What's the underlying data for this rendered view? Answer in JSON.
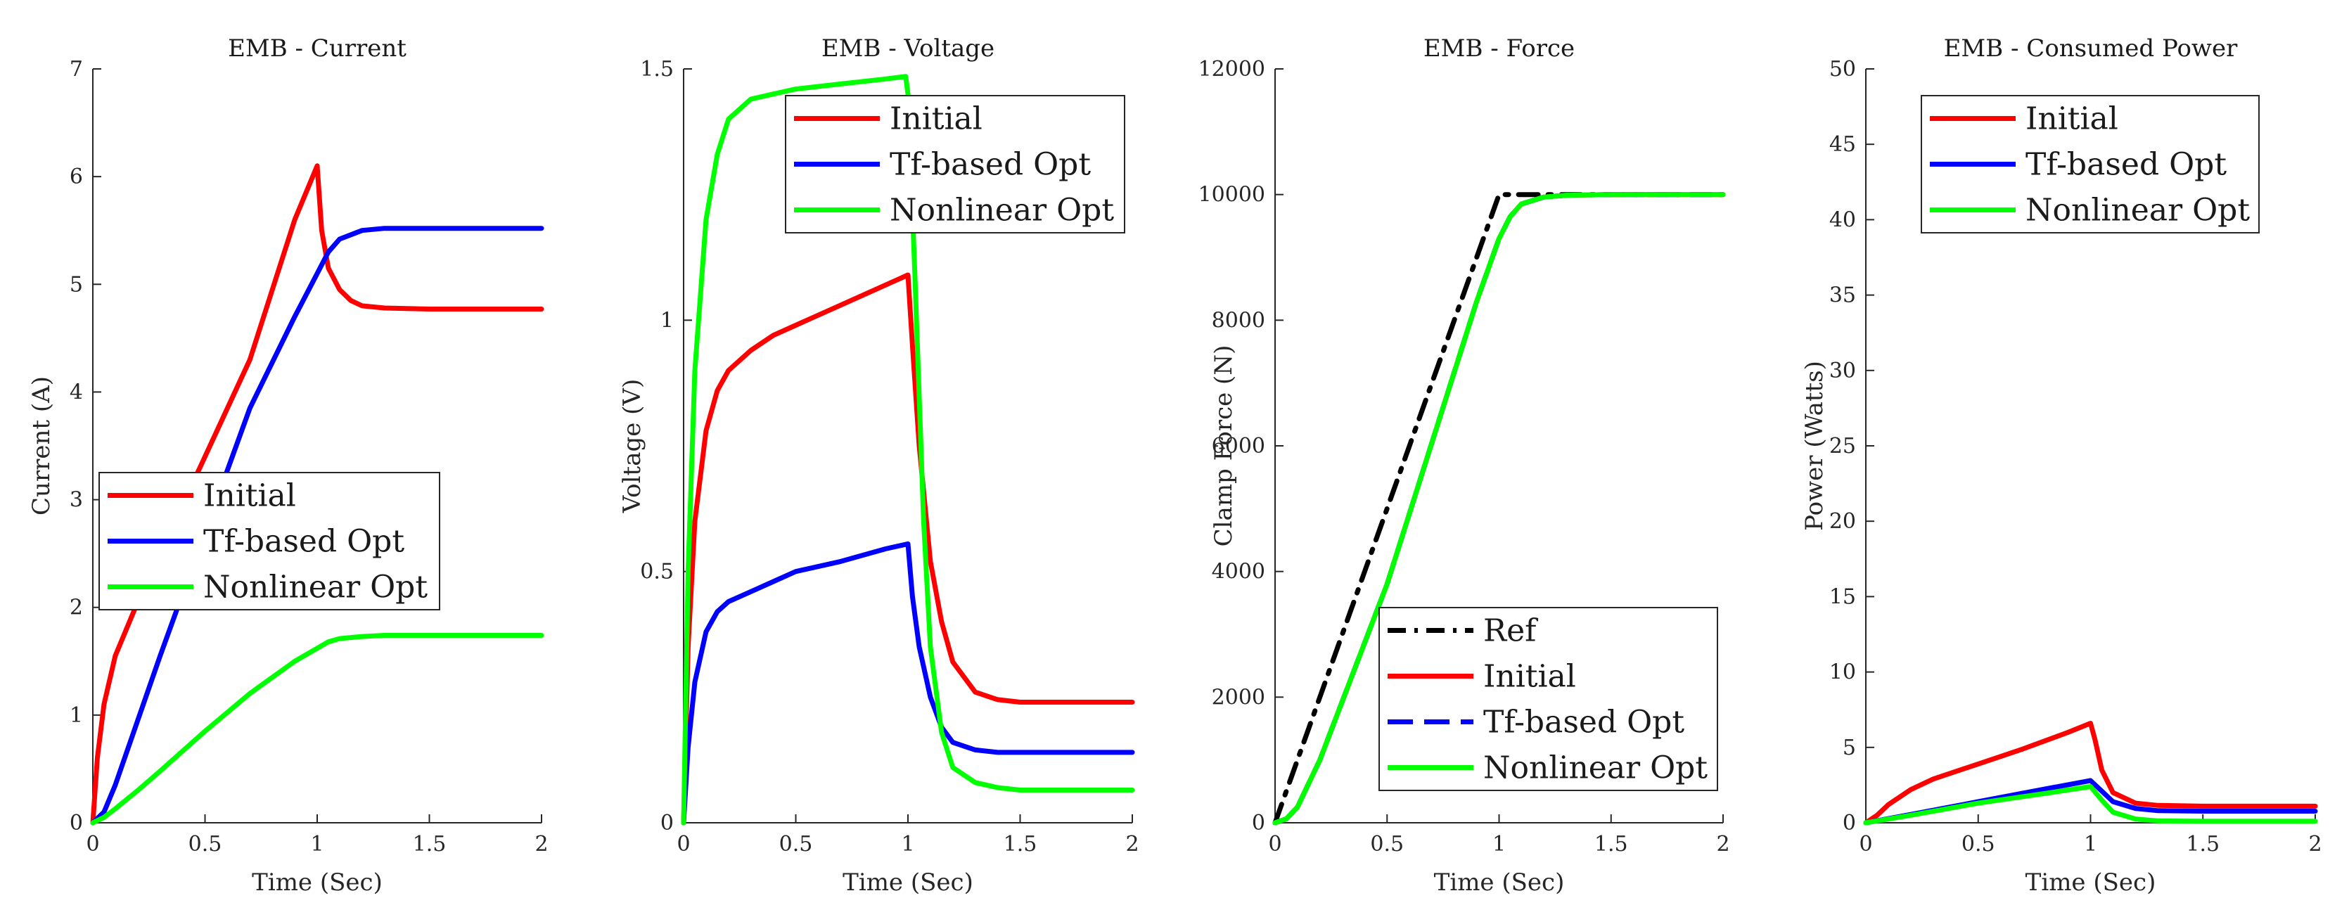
{
  "colors": {
    "initial": "#ff0000",
    "tf": "#0000ff",
    "nonlinear": "#00ff00",
    "ref": "#000000"
  },
  "chart_data": [
    {
      "type": "line",
      "title": "EMB - Current",
      "xlabel": "Time (Sec)",
      "ylabel": "Current (A)",
      "xlim": [
        0,
        2
      ],
      "ylim": [
        0,
        7
      ],
      "xticks": [
        0,
        0.5,
        1,
        1.5,
        2
      ],
      "xtick_labels": [
        "0",
        "0.5",
        "1",
        "1.5",
        "2"
      ],
      "yticks": [
        0,
        1,
        2,
        3,
        4,
        5,
        6,
        7
      ],
      "ytick_labels": [
        "0",
        "1",
        "2",
        "3",
        "4",
        "5",
        "6",
        "7"
      ],
      "legend_position": "center-left",
      "series": [
        {
          "name": "Initial",
          "color": "#ff0000",
          "dash": "solid",
          "x": [
            0,
            0.02,
            0.05,
            0.1,
            0.2,
            0.3,
            0.5,
            0.7,
            0.9,
            1.0,
            1.02,
            1.05,
            1.1,
            1.15,
            1.2,
            1.3,
            1.5,
            2.0
          ],
          "y": [
            0,
            0.6,
            1.1,
            1.55,
            2.05,
            2.5,
            3.4,
            4.3,
            5.6,
            6.1,
            5.5,
            5.15,
            4.95,
            4.85,
            4.8,
            4.78,
            4.77,
            4.77
          ]
        },
        {
          "name": "Tf-based Opt",
          "color": "#0000ff",
          "dash": "solid",
          "x": [
            0,
            0.05,
            0.1,
            0.2,
            0.3,
            0.5,
            0.7,
            0.9,
            1.0,
            1.05,
            1.1,
            1.2,
            1.3,
            1.5,
            2.0
          ],
          "y": [
            0,
            0.1,
            0.35,
            0.95,
            1.55,
            2.7,
            3.85,
            4.7,
            5.1,
            5.3,
            5.42,
            5.5,
            5.52,
            5.52,
            5.52
          ]
        },
        {
          "name": "Nonlinear Opt",
          "color": "#00ff00",
          "dash": "solid",
          "x": [
            0,
            0.05,
            0.1,
            0.2,
            0.3,
            0.5,
            0.7,
            0.9,
            1.0,
            1.05,
            1.1,
            1.2,
            1.3,
            1.5,
            2.0
          ],
          "y": [
            0,
            0.05,
            0.13,
            0.3,
            0.48,
            0.85,
            1.2,
            1.5,
            1.62,
            1.68,
            1.71,
            1.73,
            1.74,
            1.74,
            1.74
          ]
        }
      ]
    },
    {
      "type": "line",
      "title": "EMB - Voltage",
      "xlabel": "Time (Sec)",
      "ylabel": "Voltage (V)",
      "xlim": [
        0,
        2
      ],
      "ylim": [
        0,
        1.5
      ],
      "xticks": [
        0,
        0.5,
        1,
        1.5,
        2
      ],
      "xtick_labels": [
        "0",
        "0.5",
        "1",
        "1.5",
        "2"
      ],
      "yticks": [
        0,
        0.5,
        1,
        1.5
      ],
      "ytick_labels": [
        "0",
        "0.5",
        "1",
        "1.5"
      ],
      "legend_position": "top-right",
      "series": [
        {
          "name": "Initial",
          "color": "#ff0000",
          "dash": "solid",
          "x": [
            0,
            0.02,
            0.05,
            0.1,
            0.15,
            0.2,
            0.3,
            0.4,
            0.5,
            0.7,
            0.9,
            1.0,
            1.02,
            1.05,
            1.1,
            1.15,
            1.2,
            1.3,
            1.4,
            1.5,
            2.0
          ],
          "y": [
            0,
            0.35,
            0.6,
            0.78,
            0.86,
            0.9,
            0.94,
            0.97,
            0.99,
            1.03,
            1.07,
            1.09,
            0.95,
            0.75,
            0.52,
            0.4,
            0.32,
            0.26,
            0.245,
            0.24,
            0.24
          ]
        },
        {
          "name": "Tf-based Opt",
          "color": "#0000ff",
          "dash": "solid",
          "x": [
            0,
            0.02,
            0.05,
            0.1,
            0.15,
            0.2,
            0.3,
            0.4,
            0.5,
            0.7,
            0.9,
            1.0,
            1.02,
            1.05,
            1.1,
            1.15,
            1.2,
            1.3,
            1.4,
            1.5,
            2.0
          ],
          "y": [
            0,
            0.15,
            0.28,
            0.38,
            0.42,
            0.44,
            0.46,
            0.48,
            0.5,
            0.52,
            0.545,
            0.555,
            0.45,
            0.35,
            0.25,
            0.19,
            0.16,
            0.145,
            0.14,
            0.14,
            0.14
          ]
        },
        {
          "name": "Nonlinear Opt",
          "color": "#00ff00",
          "dash": "solid",
          "x": [
            0,
            0.02,
            0.05,
            0.1,
            0.15,
            0.2,
            0.3,
            0.4,
            0.5,
            0.7,
            0.9,
            0.99,
            1.0,
            1.03,
            1.07,
            1.1,
            1.15,
            1.2,
            1.3,
            1.4,
            1.5,
            2.0
          ],
          "y": [
            0,
            0.5,
            0.9,
            1.2,
            1.33,
            1.4,
            1.44,
            1.45,
            1.46,
            1.47,
            1.48,
            1.485,
            1.45,
            1.1,
            0.6,
            0.35,
            0.18,
            0.11,
            0.08,
            0.07,
            0.065,
            0.065
          ]
        }
      ]
    },
    {
      "type": "line",
      "title": "EMB - Force",
      "xlabel": "Time (Sec)",
      "ylabel": "Clamp Force (N)",
      "xlim": [
        0,
        2
      ],
      "ylim": [
        0,
        12000
      ],
      "xticks": [
        0,
        0.5,
        1,
        1.5,
        2
      ],
      "xtick_labels": [
        "0",
        "0.5",
        "1",
        "1.5",
        "2"
      ],
      "yticks": [
        0,
        2000,
        4000,
        6000,
        8000,
        10000,
        12000
      ],
      "ytick_labels": [
        "0",
        "2000",
        "4000",
        "6000",
        "8000",
        "10000",
        "12000"
      ],
      "legend_position": "bottom-right",
      "series": [
        {
          "name": "Ref",
          "color": "#000000",
          "dash": "dashdot",
          "x": [
            0,
            1.0,
            2.0
          ],
          "y": [
            0,
            10000,
            10000
          ]
        },
        {
          "name": "Initial",
          "color": "#ff0000",
          "dash": "solid",
          "x": [
            0,
            0.05,
            0.1,
            0.2,
            0.5,
            0.9,
            1.0,
            1.05,
            1.1,
            1.2,
            1.3,
            1.5,
            2.0
          ],
          "y": [
            0,
            60,
            250,
            1000,
            3800,
            8300,
            9300,
            9650,
            9850,
            9960,
            9990,
            10000,
            10000
          ]
        },
        {
          "name": "Tf-based Opt",
          "color": "#0000ff",
          "dash": "dashed",
          "x": [
            0,
            0.05,
            0.1,
            0.2,
            0.5,
            0.9,
            1.0,
            1.05,
            1.1,
            1.2,
            1.3,
            1.5,
            2.0
          ],
          "y": [
            0,
            60,
            250,
            1000,
            3800,
            8300,
            9300,
            9650,
            9850,
            9960,
            9990,
            10000,
            10000
          ]
        },
        {
          "name": "Nonlinear Opt",
          "color": "#00ff00",
          "dash": "solid",
          "x": [
            0,
            0.05,
            0.1,
            0.2,
            0.5,
            0.9,
            1.0,
            1.05,
            1.1,
            1.2,
            1.3,
            1.5,
            2.0
          ],
          "y": [
            0,
            60,
            250,
            1000,
            3800,
            8300,
            9300,
            9650,
            9850,
            9960,
            9990,
            10000,
            10000
          ]
        }
      ]
    },
    {
      "type": "line",
      "title": "EMB - Consumed Power",
      "xlabel": "Time (Sec)",
      "ylabel": "Power (Watts)",
      "xlim": [
        0,
        2
      ],
      "ylim": [
        0,
        50
      ],
      "xticks": [
        0,
        0.5,
        1,
        1.5,
        2
      ],
      "xtick_labels": [
        "0",
        "0.5",
        "1",
        "1.5",
        "2"
      ],
      "yticks": [
        0,
        5,
        10,
        15,
        20,
        25,
        30,
        35,
        40,
        45,
        50
      ],
      "ytick_labels": [
        "0",
        "5",
        "10",
        "15",
        "20",
        "25",
        "30",
        "35",
        "40",
        "45",
        "50"
      ],
      "legend_position": "top-left",
      "series": [
        {
          "name": "Initial",
          "color": "#ff0000",
          "dash": "solid",
          "x": [
            0,
            0.05,
            0.1,
            0.2,
            0.3,
            0.5,
            0.7,
            0.9,
            1.0,
            1.02,
            1.05,
            1.1,
            1.2,
            1.3,
            1.5,
            2.0
          ],
          "y": [
            0,
            0.5,
            1.2,
            2.2,
            2.9,
            3.9,
            4.9,
            6.0,
            6.6,
            5.5,
            3.5,
            2.0,
            1.3,
            1.15,
            1.1,
            1.1
          ]
        },
        {
          "name": "Tf-based Opt",
          "color": "#0000ff",
          "dash": "solid",
          "x": [
            0,
            0.2,
            0.5,
            0.8,
            1.0,
            1.05,
            1.1,
            1.2,
            1.3,
            1.5,
            2.0
          ],
          "y": [
            0,
            0.55,
            1.4,
            2.25,
            2.8,
            2.1,
            1.4,
            0.95,
            0.8,
            0.77,
            0.77
          ]
        },
        {
          "name": "Nonlinear Opt",
          "color": "#00ff00",
          "dash": "solid",
          "x": [
            0,
            0.2,
            0.5,
            0.8,
            1.0,
            1.05,
            1.1,
            1.2,
            1.3,
            1.5,
            2.0
          ],
          "y": [
            0,
            0.5,
            1.3,
            1.95,
            2.4,
            1.5,
            0.7,
            0.25,
            0.12,
            0.1,
            0.1
          ]
        }
      ]
    }
  ]
}
